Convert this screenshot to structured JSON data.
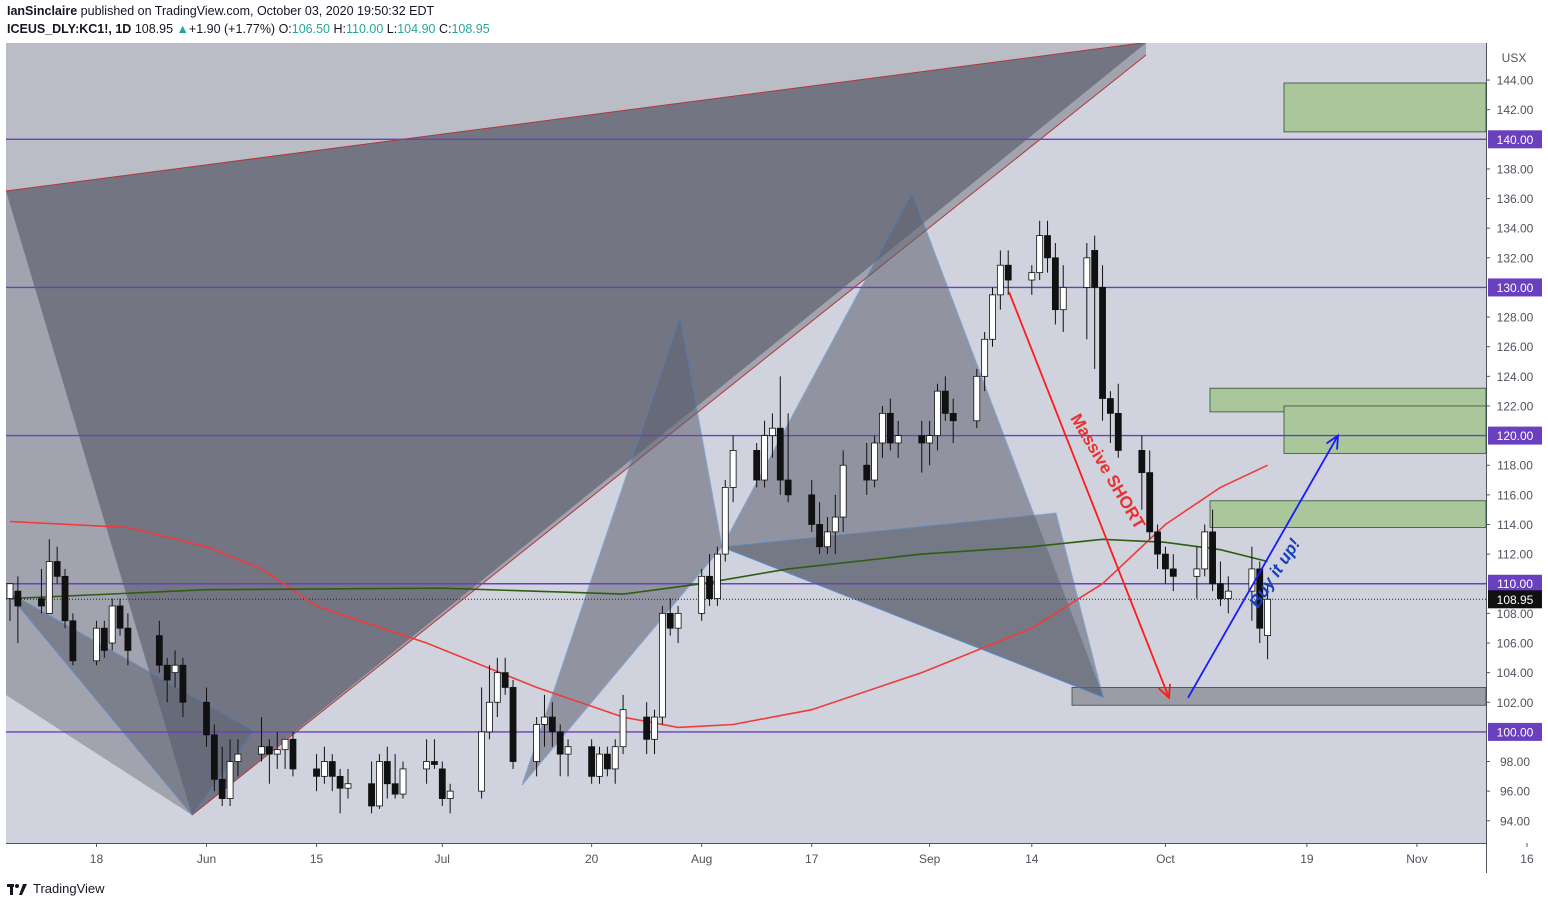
{
  "header": {
    "author": "IanSinclaire",
    "published_text": "published on TradingView.com, October 03, 2020 19:50:32 EDT",
    "symbol": "ICEUS_DLY:KC1!, 1D",
    "last": "108.95",
    "change_arrow": "▲",
    "change": "+1.90 (+1.77%)",
    "o_label": "O:",
    "o_val": "106.50",
    "h_label": "H:",
    "h_val": "110.00",
    "l_label": "L:",
    "l_val": "104.90",
    "c_label": "C:",
    "c_val": "108.95"
  },
  "footer": {
    "brand": "TradingView",
    "logo_icon": "tradingview-logo-icon"
  },
  "colors": {
    "background": "#d0d3dd",
    "purple_level": "#6a3fc0",
    "red_ma": "#ef3b3b",
    "green_ma": "#2e5e12",
    "pattern_fill": "#5f6270",
    "pattern_edge": "#3d7fd1",
    "zone_green": "#a9c79a",
    "zone_gray": "#9a9ca6",
    "arrow_red": "#ff1a1a",
    "arrow_blue": "#1a1aff",
    "text_red": "#e83030",
    "text_blue": "#1a3fb8"
  },
  "chart_data": {
    "type": "candlestick",
    "currency": "USX",
    "ylim": [
      92.5,
      146.5
    ],
    "y_ticks": [
      "94.00",
      "96.00",
      "98.00",
      "100.00",
      "102.00",
      "104.00",
      "106.00",
      "108.00",
      "110.00",
      "112.00",
      "114.00",
      "116.00",
      "118.00",
      "120.00",
      "122.00",
      "124.00",
      "126.00",
      "128.00",
      "130.00",
      "132.00",
      "134.00",
      "136.00",
      "138.00",
      "140.00",
      "142.00",
      "144.00"
    ],
    "x_ticks": [
      "18",
      "Jun",
      "15",
      "Jul",
      "20",
      "Aug",
      "17",
      "Sep",
      "14",
      "Oct",
      "19",
      "Nov",
      "16"
    ],
    "x_tick_dates": [
      "2020-05-18",
      "2020-06-01",
      "2020-06-15",
      "2020-07-01",
      "2020-07-20",
      "2020-08-03",
      "2020-08-17",
      "2020-09-01",
      "2020-09-14",
      "2020-10-01",
      "2020-10-19",
      "2020-11-02",
      "2020-11-16"
    ],
    "horizontal_levels": [
      {
        "value": 140.0,
        "label": "140.00"
      },
      {
        "value": 130.0,
        "label": "130.00"
      },
      {
        "value": 120.0,
        "label": "120.00"
      },
      {
        "value": 110.0,
        "label": "110.00"
      },
      {
        "value": 100.0,
        "label": "100.00"
      }
    ],
    "last_price": {
      "value": 108.95,
      "label": "108.95"
    },
    "annotations": [
      {
        "text": "Massive SHORT"
      },
      {
        "text": "Buy it up!"
      }
    ],
    "candles": [
      [
        "2020-05-07",
        109.0,
        110.0,
        107.5,
        110.0
      ],
      [
        "2020-05-08",
        109.5,
        110.5,
        106.0,
        108.5
      ],
      [
        "2020-05-11",
        109.0,
        111.0,
        108.0,
        108.5
      ],
      [
        "2020-05-12",
        108.0,
        113.0,
        108.0,
        111.5
      ],
      [
        "2020-05-13",
        111.5,
        112.5,
        110.0,
        110.5
      ],
      [
        "2020-05-14",
        110.5,
        111.0,
        107.0,
        107.5
      ],
      [
        "2020-05-15",
        107.5,
        108.0,
        104.5,
        104.8
      ],
      [
        "2020-05-18",
        104.8,
        107.5,
        104.5,
        107.0
      ],
      [
        "2020-05-19",
        107.0,
        107.5,
        105.0,
        105.5
      ],
      [
        "2020-05-20",
        106.0,
        109.0,
        105.5,
        108.5
      ],
      [
        "2020-05-21",
        108.5,
        109.0,
        106.5,
        107.0
      ],
      [
        "2020-05-22",
        107.0,
        108.0,
        104.5,
        105.5
      ],
      [
        "2020-05-26",
        106.5,
        107.5,
        104.0,
        104.5
      ],
      [
        "2020-05-27",
        104.5,
        105.0,
        102.0,
        103.5
      ],
      [
        "2020-05-28",
        104.0,
        105.5,
        103.0,
        104.5
      ],
      [
        "2020-05-29",
        104.5,
        105.0,
        101.0,
        102.0
      ],
      [
        "2020-06-01",
        102.0,
        103.0,
        99.0,
        99.8
      ],
      [
        "2020-06-02",
        99.8,
        100.5,
        96.0,
        96.8
      ],
      [
        "2020-06-03",
        96.8,
        99.0,
        95.0,
        95.5
      ],
      [
        "2020-06-04",
        95.5,
        99.5,
        95.0,
        98.0
      ],
      [
        "2020-06-05",
        98.0,
        99.5,
        97.0,
        98.5
      ],
      [
        "2020-06-08",
        98.5,
        101.0,
        98.0,
        99.0
      ],
      [
        "2020-06-09",
        99.0,
        99.5,
        96.5,
        98.5
      ],
      [
        "2020-06-10",
        98.5,
        100.0,
        97.5,
        98.8
      ],
      [
        "2020-06-11",
        98.8,
        99.5,
        97.5,
        99.5
      ],
      [
        "2020-06-12",
        99.5,
        100.0,
        97.0,
        97.5
      ],
      [
        "2020-06-15",
        97.5,
        98.5,
        96.0,
        97.0
      ],
      [
        "2020-06-16",
        97.0,
        99.0,
        96.5,
        98.0
      ],
      [
        "2020-06-17",
        98.0,
        98.5,
        96.0,
        97.0
      ],
      [
        "2020-06-18",
        97.0,
        97.5,
        94.5,
        96.2
      ],
      [
        "2020-06-19",
        96.2,
        97.5,
        95.5,
        96.5
      ],
      [
        "2020-06-22",
        96.5,
        98.0,
        94.5,
        95.0
      ],
      [
        "2020-06-23",
        95.0,
        98.5,
        94.8,
        98.0
      ],
      [
        "2020-06-24",
        98.0,
        99.0,
        95.5,
        96.5
      ],
      [
        "2020-06-25",
        96.5,
        98.5,
        95.5,
        95.8
      ],
      [
        "2020-06-26",
        95.8,
        98.0,
        95.5,
        97.5
      ],
      [
        "2020-06-29",
        97.5,
        99.5,
        96.5,
        98.0
      ],
      [
        "2020-06-30",
        98.0,
        99.5,
        97.5,
        97.8
      ],
      [
        "2020-07-01",
        97.5,
        98.0,
        95.0,
        95.5
      ],
      [
        "2020-07-02",
        95.5,
        96.5,
        94.5,
        96.0
      ],
      [
        "2020-07-06",
        96.0,
        103.0,
        95.5,
        100.0
      ],
      [
        "2020-07-07",
        100.0,
        104.5,
        99.5,
        102.0
      ],
      [
        "2020-07-08",
        102.0,
        105.0,
        101.0,
        104.0
      ],
      [
        "2020-07-09",
        104.0,
        105.0,
        102.5,
        103.0
      ],
      [
        "2020-07-10",
        103.0,
        103.5,
        97.5,
        98.0
      ],
      [
        "2020-07-13",
        98.0,
        101.0,
        97.0,
        100.5
      ],
      [
        "2020-07-14",
        100.5,
        102.5,
        99.0,
        101.0
      ],
      [
        "2020-07-15",
        101.0,
        102.0,
        99.0,
        100.0
      ],
      [
        "2020-07-16",
        100.0,
        100.5,
        97.0,
        98.5
      ],
      [
        "2020-07-17",
        98.5,
        99.5,
        97.0,
        99.0
      ],
      [
        "2020-07-20",
        99.0,
        99.5,
        96.5,
        97.0
      ],
      [
        "2020-07-21",
        97.0,
        99.0,
        96.5,
        98.5
      ],
      [
        "2020-07-22",
        98.5,
        99.0,
        97.0,
        97.5
      ],
      [
        "2020-07-23",
        97.5,
        99.5,
        96.5,
        99.0
      ],
      [
        "2020-07-24",
        99.0,
        102.5,
        98.5,
        101.5
      ],
      [
        "2020-07-27",
        101.0,
        102.0,
        98.5,
        99.5
      ],
      [
        "2020-07-28",
        99.5,
        101.5,
        98.5,
        101.0
      ],
      [
        "2020-07-29",
        101.0,
        108.5,
        100.5,
        108.0
      ],
      [
        "2020-07-30",
        108.0,
        109.0,
        106.5,
        107.0
      ],
      [
        "2020-07-31",
        107.0,
        108.5,
        106.0,
        108.0
      ],
      [
        "2020-08-03",
        108.0,
        111.0,
        107.5,
        110.5
      ],
      [
        "2020-08-04",
        110.5,
        112.0,
        108.5,
        109.0
      ],
      [
        "2020-08-05",
        109.0,
        112.5,
        108.5,
        112.0
      ],
      [
        "2020-08-06",
        112.0,
        117.0,
        111.5,
        116.5
      ],
      [
        "2020-08-07",
        116.5,
        120.0,
        115.5,
        119.0
      ],
      [
        "2020-08-10",
        119.0,
        119.5,
        116.5,
        117.0
      ],
      [
        "2020-08-11",
        117.0,
        121.0,
        116.5,
        120.0
      ],
      [
        "2020-08-12",
        120.0,
        121.5,
        118.5,
        120.5
      ],
      [
        "2020-08-13",
        120.5,
        124.0,
        116.0,
        117.0
      ],
      [
        "2020-08-14",
        117.0,
        121.5,
        115.5,
        116.0
      ],
      [
        "2020-08-17",
        116.0,
        117.0,
        113.5,
        114.0
      ],
      [
        "2020-08-18",
        114.0,
        115.5,
        112.0,
        112.5
      ],
      [
        "2020-08-19",
        112.5,
        114.5,
        112.0,
        113.5
      ],
      [
        "2020-08-20",
        113.5,
        116.0,
        112.0,
        114.5
      ],
      [
        "2020-08-21",
        114.5,
        119.0,
        113.5,
        118.0
      ],
      [
        "2020-08-24",
        118.0,
        119.5,
        116.0,
        117.0
      ],
      [
        "2020-08-25",
        117.0,
        120.0,
        116.5,
        119.5
      ],
      [
        "2020-08-26",
        119.5,
        122.0,
        118.5,
        121.5
      ],
      [
        "2020-08-27",
        121.5,
        122.5,
        119.0,
        119.5
      ],
      [
        "2020-08-28",
        119.5,
        121.0,
        118.5,
        120.0
      ],
      [
        "2020-08-31",
        120.0,
        121.0,
        117.5,
        119.5
      ],
      [
        "2020-09-01",
        119.5,
        121.0,
        118.0,
        120.0
      ],
      [
        "2020-09-02",
        120.0,
        123.5,
        119.0,
        123.0
      ],
      [
        "2020-09-03",
        123.0,
        124.0,
        121.0,
        121.5
      ],
      [
        "2020-09-04",
        121.5,
        122.5,
        119.5,
        121.0
      ],
      [
        "2020-09-07",
        121.0,
        124.5,
        120.5,
        124.0
      ],
      [
        "2020-09-08",
        124.0,
        127.0,
        123.0,
        126.5
      ],
      [
        "2020-09-09",
        126.5,
        130.0,
        126.0,
        129.5
      ],
      [
        "2020-09-10",
        129.5,
        132.5,
        128.5,
        131.5
      ],
      [
        "2020-09-11",
        131.5,
        132.5,
        129.5,
        130.5
      ],
      [
        "2020-09-14",
        130.5,
        131.5,
        129.5,
        131.0
      ],
      [
        "2020-09-15",
        131.0,
        134.5,
        130.5,
        133.5
      ],
      [
        "2020-09-16",
        133.5,
        134.5,
        131.0,
        132.0
      ],
      [
        "2020-09-17",
        132.0,
        133.0,
        127.5,
        128.5
      ],
      [
        "2020-09-18",
        128.5,
        131.5,
        127.0,
        130.0
      ],
      [
        "2020-09-21",
        130.0,
        133.0,
        126.5,
        132.0
      ],
      [
        "2020-09-22",
        132.5,
        133.5,
        124.5,
        130.0
      ],
      [
        "2020-09-23",
        130.0,
        131.5,
        121.0,
        122.5
      ],
      [
        "2020-09-24",
        122.5,
        123.0,
        119.5,
        121.5
      ],
      [
        "2020-09-25",
        121.5,
        123.5,
        118.5,
        119.0
      ],
      [
        "2020-09-28",
        119.0,
        120.0,
        115.0,
        117.5
      ],
      [
        "2020-09-29",
        117.5,
        119.0,
        113.0,
        113.5
      ],
      [
        "2020-09-30",
        113.5,
        114.0,
        111.0,
        112.0
      ],
      [
        "2020-10-01",
        112.0,
        112.5,
        110.0,
        111.0
      ],
      [
        "2020-10-02",
        111.0,
        112.0,
        109.5,
        110.5
      ],
      [
        "2020-10-05",
        110.5,
        112.5,
        109.0,
        111.0
      ],
      [
        "2020-10-06",
        111.0,
        114.0,
        110.5,
        113.5
      ],
      [
        "2020-10-07",
        113.5,
        115.0,
        109.5,
        110.0
      ],
      [
        "2020-10-08",
        110.0,
        111.5,
        108.5,
        109.0
      ],
      [
        "2020-10-09",
        109.0,
        110.5,
        108.0,
        109.5
      ],
      [
        "2020-10-12",
        109.5,
        112.5,
        107.5,
        111.0
      ],
      [
        "2020-10-13",
        111.0,
        111.5,
        106.0,
        107.0
      ],
      [
        "2020-10-14",
        106.5,
        110.0,
        104.9,
        108.95
      ]
    ],
    "series": [
      {
        "kind": "moving-average",
        "color": "#ef3b3b",
        "points": [
          [
            "2020-05-07",
            114.2
          ],
          [
            "2020-05-22",
            113.8
          ],
          [
            "2020-06-01",
            112.5
          ],
          [
            "2020-06-08",
            111.0
          ],
          [
            "2020-06-15",
            108.5
          ],
          [
            "2020-06-29",
            106.0
          ],
          [
            "2020-07-13",
            103.0
          ],
          [
            "2020-07-24",
            101.0
          ],
          [
            "2020-07-31",
            100.3
          ],
          [
            "2020-08-07",
            100.5
          ],
          [
            "2020-08-17",
            101.5
          ],
          [
            "2020-08-31",
            104.0
          ],
          [
            "2020-09-14",
            107.0
          ],
          [
            "2020-09-23",
            110.0
          ],
          [
            "2020-10-01",
            114.0
          ],
          [
            "2020-10-08",
            116.5
          ],
          [
            "2020-10-14",
            118.0
          ]
        ]
      },
      {
        "kind": "moving-average",
        "color": "#2e5e12",
        "points": [
          [
            "2020-05-07",
            109.0
          ],
          [
            "2020-06-01",
            109.6
          ],
          [
            "2020-07-01",
            109.7
          ],
          [
            "2020-07-24",
            109.3
          ],
          [
            "2020-08-03",
            110.0
          ],
          [
            "2020-08-14",
            111.0
          ],
          [
            "2020-08-31",
            112.0
          ],
          [
            "2020-09-14",
            112.5
          ],
          [
            "2020-09-23",
            113.0
          ],
          [
            "2020-10-01",
            112.8
          ],
          [
            "2020-10-08",
            112.3
          ],
          [
            "2020-10-14",
            111.5
          ]
        ]
      }
    ]
  }
}
